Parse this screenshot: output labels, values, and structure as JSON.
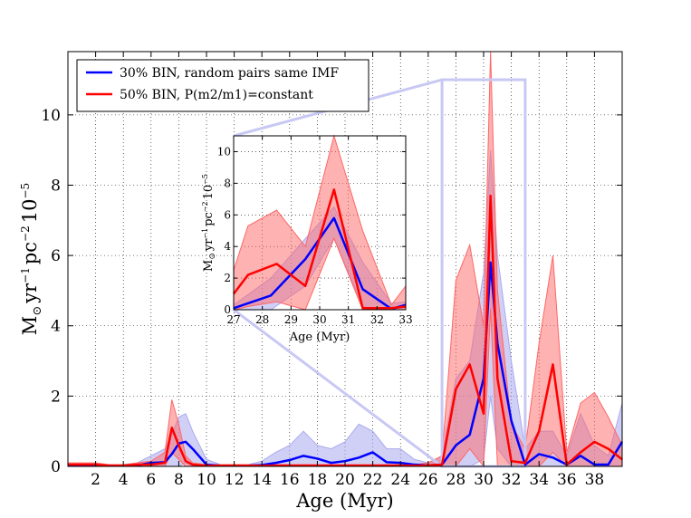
{
  "chart_data": {
    "type": "line",
    "xlabel": "Age (Myr)",
    "ylabel_parts": {
      "base": "M",
      "sub": "⊙",
      "mid": "yr",
      "exp1": "−1",
      "mid2": "pc",
      "exp2": "−2",
      "mid3": "10",
      "exp3": "−5"
    },
    "xlim": [
      0,
      40
    ],
    "ylim": [
      0,
      11.8
    ],
    "xticks": [
      2,
      4,
      6,
      8,
      10,
      12,
      14,
      16,
      18,
      20,
      22,
      24,
      26,
      28,
      30,
      32,
      34,
      36,
      38
    ],
    "xtick_labels": [
      "2",
      "4",
      "6",
      "8",
      "10",
      "12",
      "14",
      "16",
      "18",
      "20",
      "22",
      "24",
      "26",
      "28",
      "30",
      "32",
      "34",
      "36",
      "38"
    ],
    "yticks": [
      0,
      2,
      4,
      6,
      8,
      10
    ],
    "ytick_labels": [
      "0",
      "2",
      "4",
      "6",
      "8",
      "10"
    ],
    "grid": true,
    "legend_position": "top-left",
    "series": [
      {
        "name": "30% BIN, random pairs same IMF",
        "color": "#0000ff",
        "band_color": "#aaaaee",
        "x": [
          0,
          1,
          2,
          3,
          4,
          5,
          6,
          7,
          7.5,
          8,
          8.5,
          9,
          10,
          11,
          12,
          13,
          14,
          15,
          16,
          17,
          18,
          19,
          20,
          21,
          22,
          23,
          24,
          25,
          26,
          27,
          28,
          29,
          30,
          30.5,
          31,
          32,
          33,
          34,
          35,
          36,
          37,
          38,
          39,
          40
        ],
        "values": [
          0.02,
          0.02,
          0.02,
          0.02,
          0.02,
          0.03,
          0.1,
          0.12,
          0.35,
          0.65,
          0.7,
          0.5,
          0.05,
          0.02,
          0.02,
          0.02,
          0.04,
          0.1,
          0.18,
          0.3,
          0.22,
          0.1,
          0.15,
          0.25,
          0.4,
          0.12,
          0.1,
          0.05,
          0.03,
          0.05,
          0.6,
          0.9,
          2.5,
          5.8,
          3.5,
          1.3,
          0.05,
          0.35,
          0.25,
          0.05,
          0.3,
          0.05,
          0.05,
          0.7
        ],
        "upper": [
          0.05,
          0.05,
          0.05,
          0.05,
          0.05,
          0.1,
          0.3,
          0.5,
          0.9,
          1.4,
          1.5,
          1.0,
          0.2,
          0.05,
          0.05,
          0.05,
          0.15,
          0.4,
          0.6,
          1.0,
          0.6,
          0.5,
          0.7,
          1.2,
          1.0,
          0.5,
          0.5,
          0.2,
          0.1,
          0.3,
          2.5,
          3.0,
          5.5,
          9.0,
          6.0,
          3.0,
          0.5,
          1.0,
          1.0,
          0.3,
          1.5,
          0.6,
          0.3,
          1.8
        ],
        "lower": [
          0,
          0,
          0,
          0,
          0,
          0,
          0,
          0,
          0,
          0,
          0.1,
          0,
          0,
          0,
          0,
          0,
          0,
          0,
          0,
          0,
          0,
          0,
          0,
          0,
          0,
          0,
          0,
          0,
          0,
          0,
          0,
          0,
          0.2,
          2.0,
          0.5,
          0,
          0,
          0,
          0,
          0,
          0,
          0,
          0,
          0
        ]
      },
      {
        "name": "50% BIN, P(m2/m1)=constant",
        "color": "#ff0000",
        "band_color": "#ff6666",
        "x": [
          0,
          1,
          2,
          3,
          4,
          5,
          6,
          7,
          7.5,
          8,
          8.5,
          9,
          10,
          11,
          12,
          13,
          14,
          15,
          16,
          17,
          18,
          19,
          20,
          21,
          22,
          23,
          24,
          25,
          26,
          27,
          28,
          29,
          30,
          30.5,
          31,
          32,
          33,
          34,
          35,
          36,
          37,
          38,
          39,
          40
        ],
        "values": [
          0.05,
          0.05,
          0.05,
          0.02,
          0.02,
          0.05,
          0.05,
          0.1,
          1.1,
          0.6,
          0.15,
          0.05,
          0.02,
          0.02,
          0.02,
          0.02,
          0.02,
          0.02,
          0.02,
          0.02,
          0.02,
          0.02,
          0.02,
          0.02,
          0.02,
          0.02,
          0.02,
          0.02,
          0.03,
          0.05,
          2.2,
          2.9,
          1.5,
          7.7,
          2.5,
          0.15,
          0.1,
          1.0,
          2.9,
          0.05,
          0.4,
          0.7,
          0.5,
          0.2
        ],
        "upper": [
          0.1,
          0.1,
          0.1,
          0.05,
          0.05,
          0.1,
          0.15,
          0.4,
          1.9,
          1.2,
          0.3,
          0.1,
          0.05,
          0.05,
          0.05,
          0.05,
          0.05,
          0.05,
          0.05,
          0.05,
          0.05,
          0.05,
          0.05,
          0.05,
          0.05,
          0.05,
          0.05,
          0.05,
          0.1,
          0.3,
          5.3,
          6.3,
          4.0,
          11.8,
          5.0,
          1.2,
          0.5,
          3.5,
          6.0,
          0.4,
          1.8,
          2.1,
          1.4,
          0.6
        ],
        "lower": [
          0,
          0,
          0,
          0,
          0,
          0,
          0,
          0,
          0.4,
          0.2,
          0,
          0,
          0,
          0,
          0,
          0,
          0,
          0,
          0,
          0,
          0,
          0,
          0,
          0,
          0,
          0,
          0,
          0,
          0,
          0,
          0,
          0.5,
          0,
          4.5,
          0,
          0,
          0,
          0,
          0.4,
          0,
          0,
          0,
          0,
          0
        ]
      }
    ],
    "zoom_box": {
      "x": [
        27,
        33
      ],
      "y": [
        0,
        11
      ]
    },
    "inset": {
      "xlabel": "Age (Myr)",
      "xlim": [
        27,
        33
      ],
      "ylim": [
        0,
        11
      ],
      "xticks": [
        27,
        28,
        29,
        30,
        31,
        32,
        33
      ],
      "xtick_labels": [
        "27",
        "28",
        "29",
        "30",
        "31",
        "32",
        "33"
      ],
      "yticks": [
        0,
        2,
        4,
        6,
        8,
        10
      ],
      "ytick_labels": [
        "0",
        "2",
        "4",
        "6",
        "8",
        "10"
      ],
      "series": [
        {
          "name": "30% BIN",
          "color": "#0000ff",
          "band_color": "#aaaaee",
          "x": [
            27,
            28.3,
            29.5,
            30.5,
            31.5,
            32.5,
            33
          ],
          "values": [
            0.1,
            0.9,
            3.2,
            5.8,
            1.3,
            0.05,
            0.3
          ],
          "upper": [
            0.3,
            2.0,
            4.5,
            6.5,
            3.0,
            0.4,
            0.5
          ],
          "lower": [
            0,
            0,
            1.5,
            4.5,
            0.2,
            0,
            0
          ]
        },
        {
          "name": "50% BIN",
          "color": "#ff0000",
          "band_color": "#ff6666",
          "x": [
            27,
            27.5,
            28.5,
            29.5,
            30.5,
            31.5,
            32.5,
            33
          ],
          "values": [
            1.0,
            2.2,
            2.9,
            1.5,
            7.6,
            0.1,
            0.1,
            0.2
          ],
          "upper": [
            2.5,
            5.3,
            6.3,
            4.0,
            11.0,
            5.0,
            0.3,
            1.5
          ],
          "lower": [
            0,
            0.2,
            0.5,
            0,
            4.5,
            0,
            0,
            0
          ]
        }
      ]
    }
  }
}
